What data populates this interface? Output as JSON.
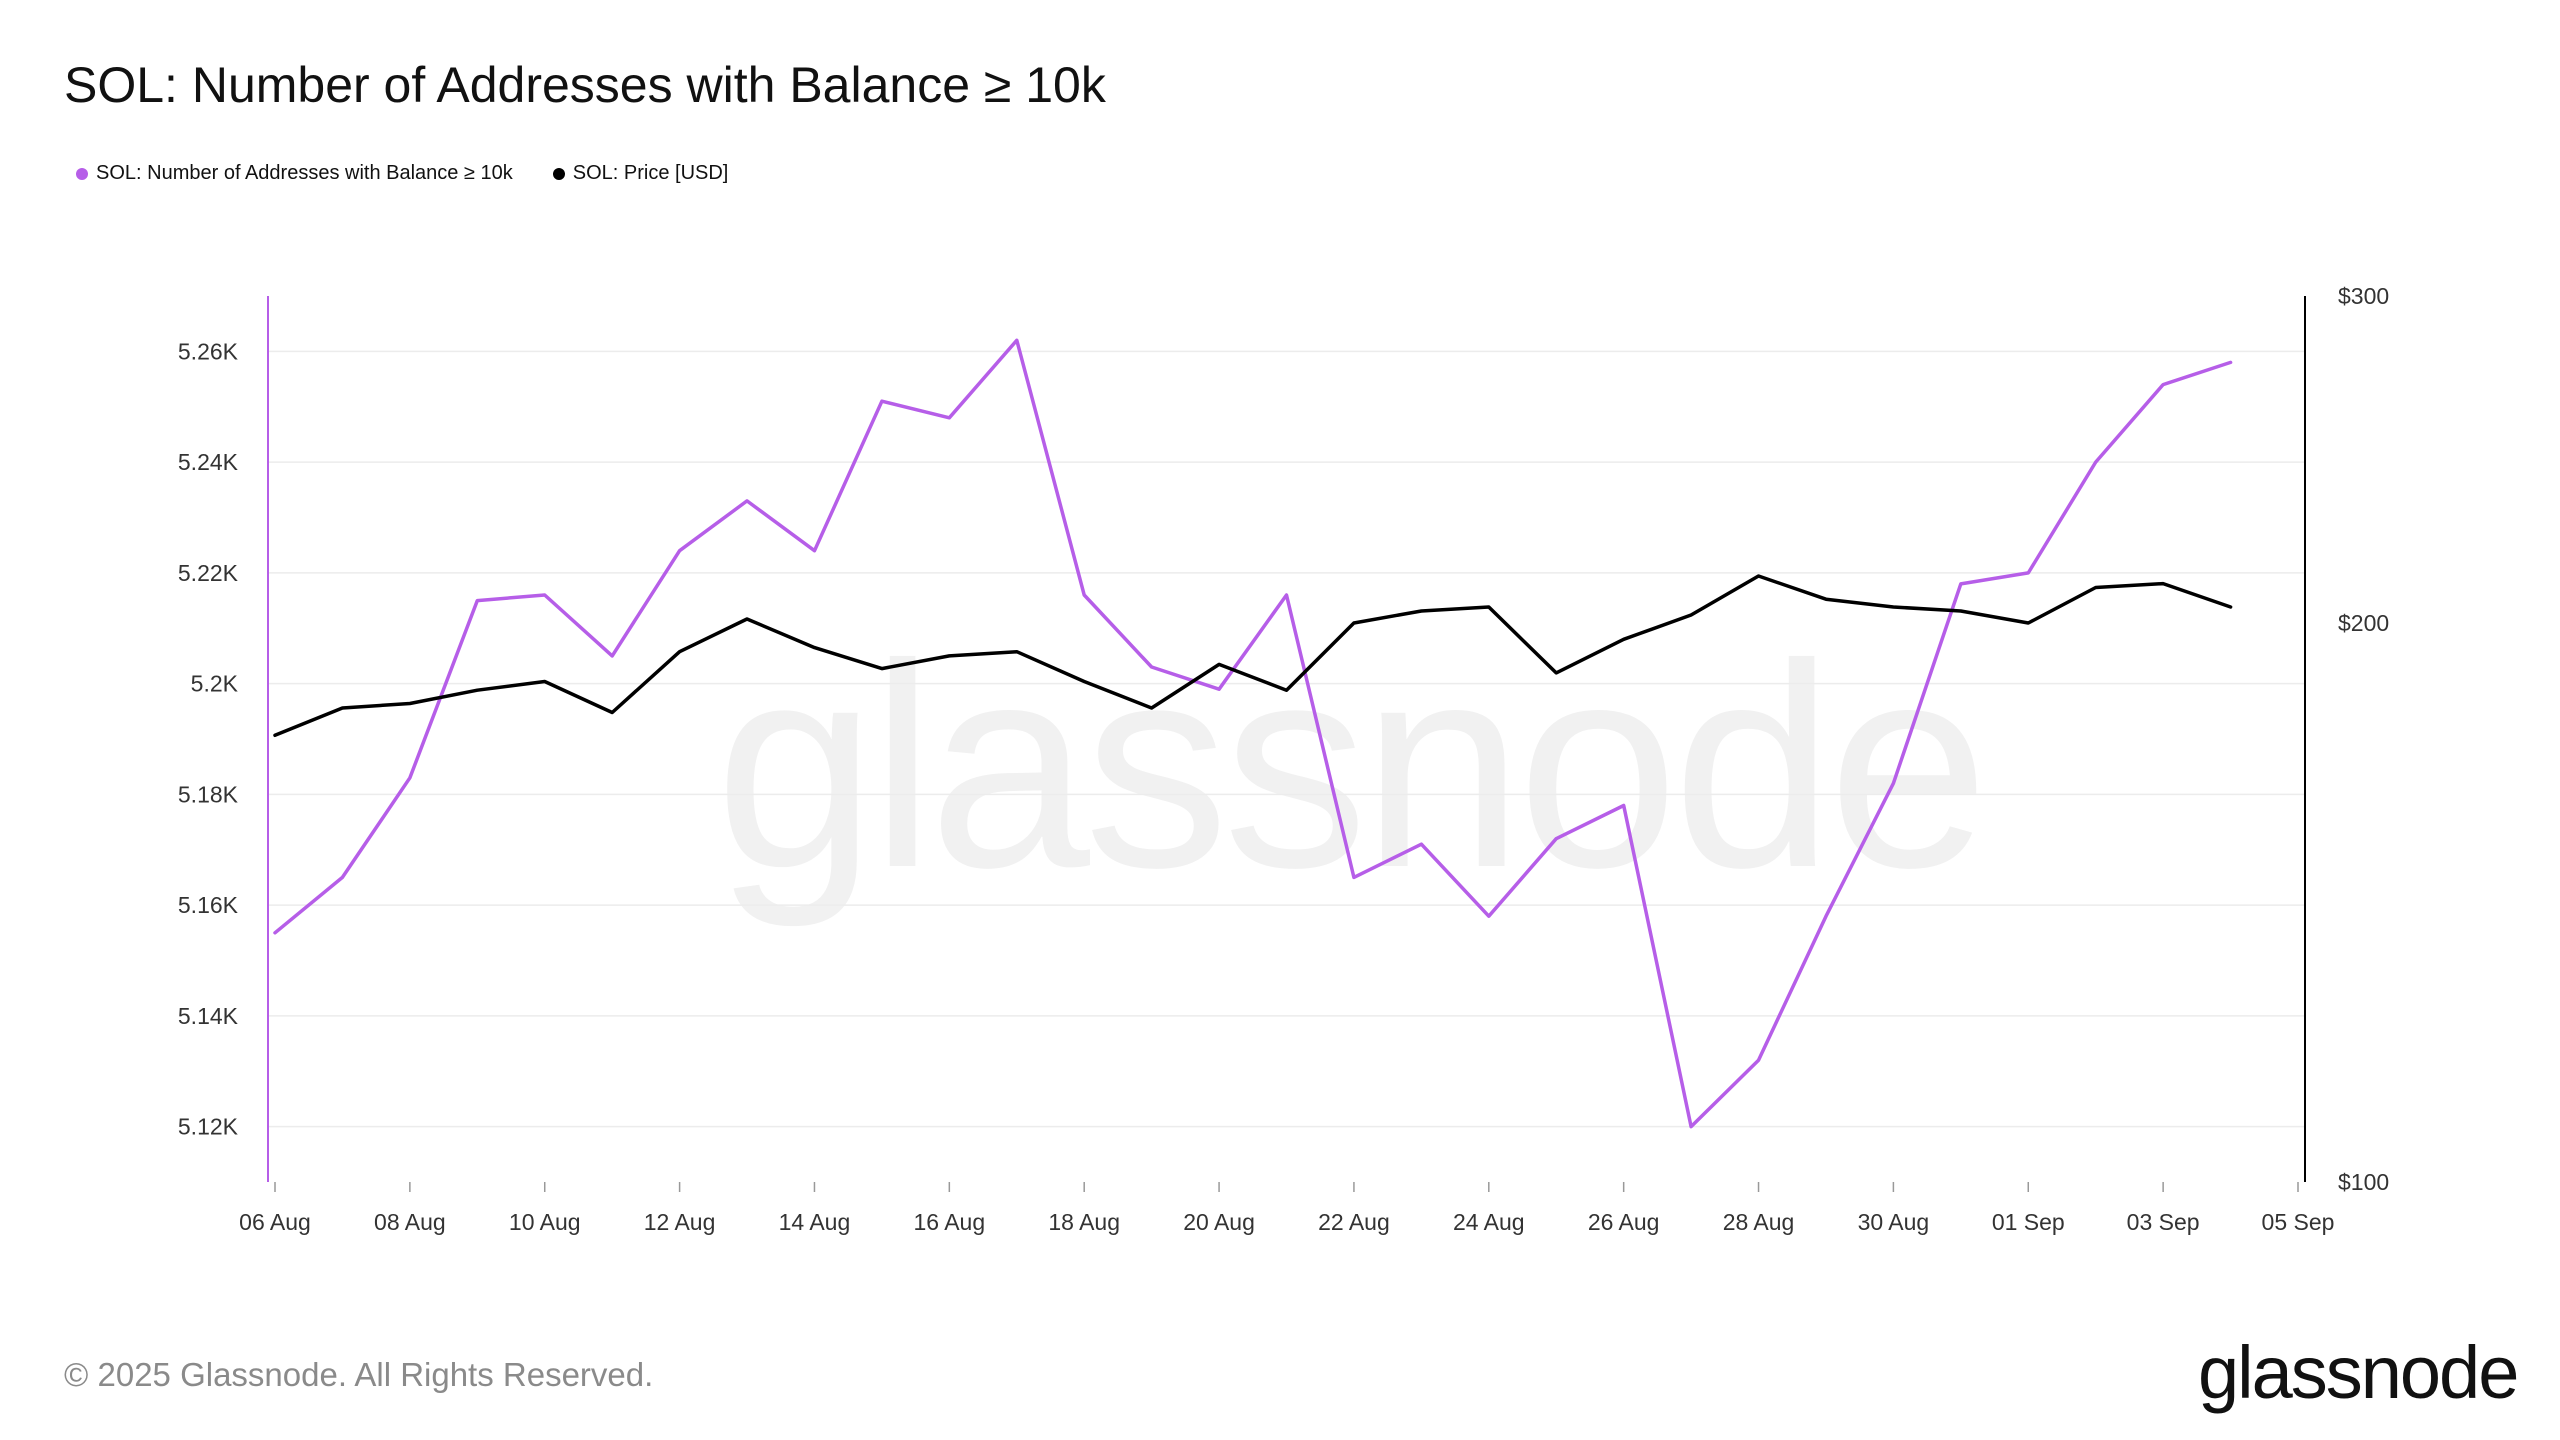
{
  "title": "SOL: Number of Addresses with Balance ≥ 10k",
  "footer": "© 2025 Glassnode. All Rights Reserved.",
  "brand": "glassnode",
  "watermark": "glassnode",
  "chart_data": {
    "type": "line",
    "title": "SOL: Number of Addresses with Balance ≥ 10k",
    "x": [
      "06 Aug",
      "07 Aug",
      "08 Aug",
      "09 Aug",
      "10 Aug",
      "11 Aug",
      "12 Aug",
      "13 Aug",
      "14 Aug",
      "15 Aug",
      "16 Aug",
      "17 Aug",
      "18 Aug",
      "19 Aug",
      "20 Aug",
      "21 Aug",
      "22 Aug",
      "23 Aug",
      "24 Aug",
      "25 Aug",
      "26 Aug",
      "27 Aug",
      "28 Aug",
      "29 Aug",
      "30 Aug",
      "31 Aug",
      "01 Sep",
      "02 Sep",
      "03 Sep",
      "04 Sep"
    ],
    "x_tick_labels": [
      "06 Aug",
      "08 Aug",
      "10 Aug",
      "12 Aug",
      "14 Aug",
      "16 Aug",
      "18 Aug",
      "20 Aug",
      "22 Aug",
      "24 Aug",
      "26 Aug",
      "28 Aug",
      "30 Aug",
      "01 Sep",
      "03 Sep",
      "05 Sep"
    ],
    "series": [
      {
        "name": "SOL: Number of Addresses with Balance ≥ 10k",
        "axis": "left",
        "color": "#b65ee8",
        "values": [
          5155,
          5165,
          5183,
          5215,
          5216,
          5205,
          5224,
          5233,
          5224,
          5251,
          5248,
          5262,
          5216,
          5203,
          5199,
          5216,
          5165,
          5171,
          5158,
          5172,
          5178,
          5120,
          5132,
          5158,
          5182,
          5218,
          5220,
          5240,
          5254,
          5258
        ]
      },
      {
        "name": "SOL: Price [USD]",
        "axis": "right",
        "color": "#000000",
        "values": [
          174,
          180,
          181,
          184,
          186,
          179,
          193,
          201,
          194,
          189,
          192,
          193,
          186,
          180,
          190,
          184,
          200,
          203,
          204,
          188,
          196,
          202,
          212,
          206,
          204,
          203,
          200,
          209,
          210,
          204
        ]
      }
    ],
    "y_left": {
      "ylim": [
        5110,
        5270
      ],
      "ticks": [
        5120,
        5140,
        5160,
        5180,
        5200,
        5220,
        5240,
        5260
      ],
      "tick_labels": [
        "5.12K",
        "5.14K",
        "5.16K",
        "5.18K",
        "5.2K",
        "5.22K",
        "5.24K",
        "5.26K"
      ]
    },
    "y_right": {
      "ylim": [
        100,
        300
      ],
      "scale": "log",
      "ticks": [
        100,
        200,
        300
      ],
      "tick_labels": [
        "$100",
        "$200",
        "$300"
      ]
    },
    "grid": true,
    "legend": "top-left"
  }
}
